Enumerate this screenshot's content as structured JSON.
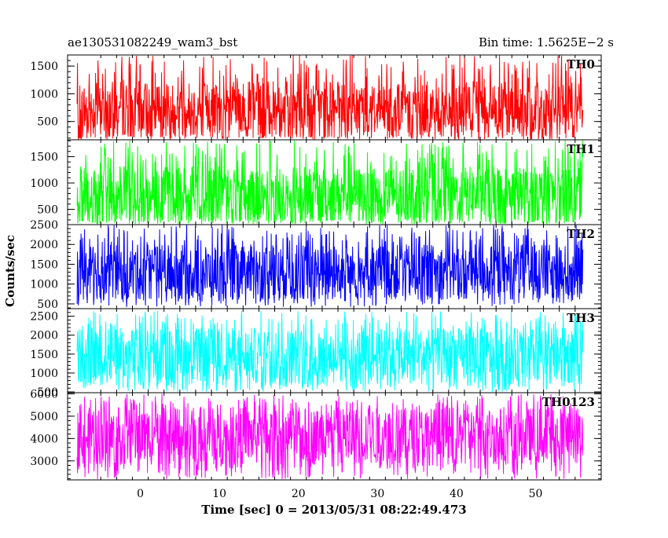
{
  "header": {
    "left": "ae130531082249_wam3_bst",
    "right": "Bin time: 1.5625E−2 s"
  },
  "chart_data": {
    "type": "line",
    "title": "ae130531082249_wam3_bst",
    "subtitle": "Bin time: 1.5625E−2 s",
    "xlabel": "Time [sec] 0 = 2013/05/31 08:22:49.473",
    "ylabel": "Counts/sec",
    "xlim": [
      -9.2,
      58.3
    ],
    "data_range": [
      -8.0,
      56.0
    ],
    "x_ticks": [
      0,
      10,
      20,
      30,
      40,
      50
    ],
    "x_tick_labels": [
      "0",
      "10",
      "20",
      "30",
      "40",
      "50"
    ],
    "panels": [
      {
        "name": "TH0",
        "color": "#ff0000",
        "ylim": [
          170,
          1700
        ],
        "yticks": [
          500,
          1000,
          1500
        ],
        "ytick_labels": [
          "500",
          "1000",
          "1500"
        ],
        "mean": 720,
        "band": [
          240,
          1250
        ],
        "spike_max": 1700,
        "spike_min": 175
      },
      {
        "name": "TH1",
        "color": "#00ff00",
        "ylim": [
          210,
          1820
        ],
        "yticks": [
          500,
          1000,
          1500
        ],
        "ytick_labels": [
          "500",
          "1000",
          "1500"
        ],
        "mean": 780,
        "band": [
          300,
          1380
        ],
        "spike_max": 1820,
        "spike_min": 220
      },
      {
        "name": "TH2",
        "color": "#0000ff",
        "ylim": [
          380,
          2500
        ],
        "yticks": [
          500,
          1000,
          1500,
          2000,
          2500
        ],
        "ytick_labels": [
          "500",
          "1000",
          "1500",
          "2000",
          "2500"
        ],
        "mean": 1300,
        "band": [
          650,
          2050
        ],
        "spike_max": 2500,
        "spike_min": 420
      },
      {
        "name": "TH3",
        "color": "#00ffff",
        "ylim": [
          480,
          2700
        ],
        "yticks": [
          500,
          1000,
          1500,
          2000,
          2500
        ],
        "ytick_labels": [
          "500",
          "1000",
          "1500",
          "2000",
          "2500"
        ],
        "mean": 1450,
        "band": [
          750,
          2250
        ],
        "spike_max": 2650,
        "spike_min": 500
      },
      {
        "name": "TH0123",
        "color": "#ff00ff",
        "ylim": [
          2150,
          6050
        ],
        "yticks": [
          3000,
          4000,
          5000,
          6000
        ],
        "ytick_labels": [
          "3000",
          "4000",
          "5000",
          "6000"
        ],
        "mean": 4100,
        "band": [
          2800,
          5400
        ],
        "spike_max": 6000,
        "spike_min": 2180
      }
    ],
    "grid": false,
    "legend": "none"
  }
}
